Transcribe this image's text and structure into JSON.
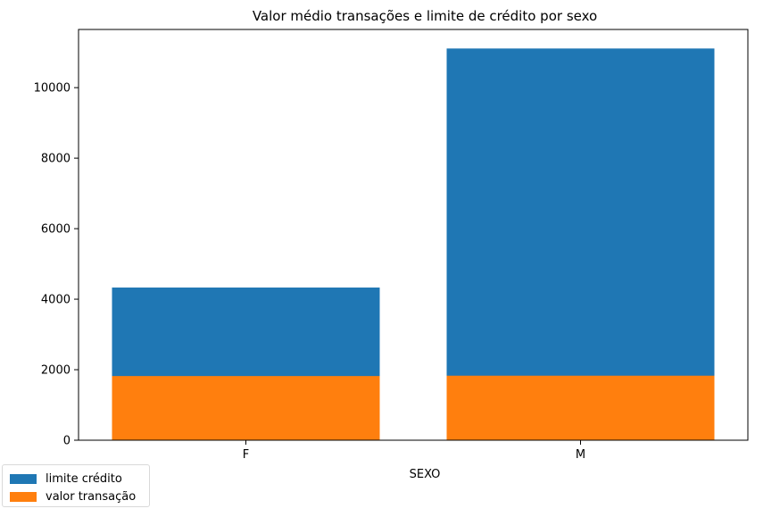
{
  "chart_data": {
    "type": "bar",
    "stacked": false,
    "overlay": true,
    "title": "Valor médio transações e limite de crédito por sexo",
    "xlabel": "SEXO",
    "ylabel": "",
    "categories": [
      "F",
      "M"
    ],
    "series": [
      {
        "name": "limite crédito",
        "color": "#1f77b4",
        "values": [
          4330,
          11110
        ]
      },
      {
        "name": "valor transação",
        "color": "#ff7f0e",
        "values": [
          1820,
          1830
        ]
      }
    ],
    "ylim": [
      0,
      11650
    ],
    "yticks": [
      0,
      2000,
      4000,
      6000,
      8000,
      10000
    ],
    "grid": false,
    "legend_position": "bottom-left"
  }
}
